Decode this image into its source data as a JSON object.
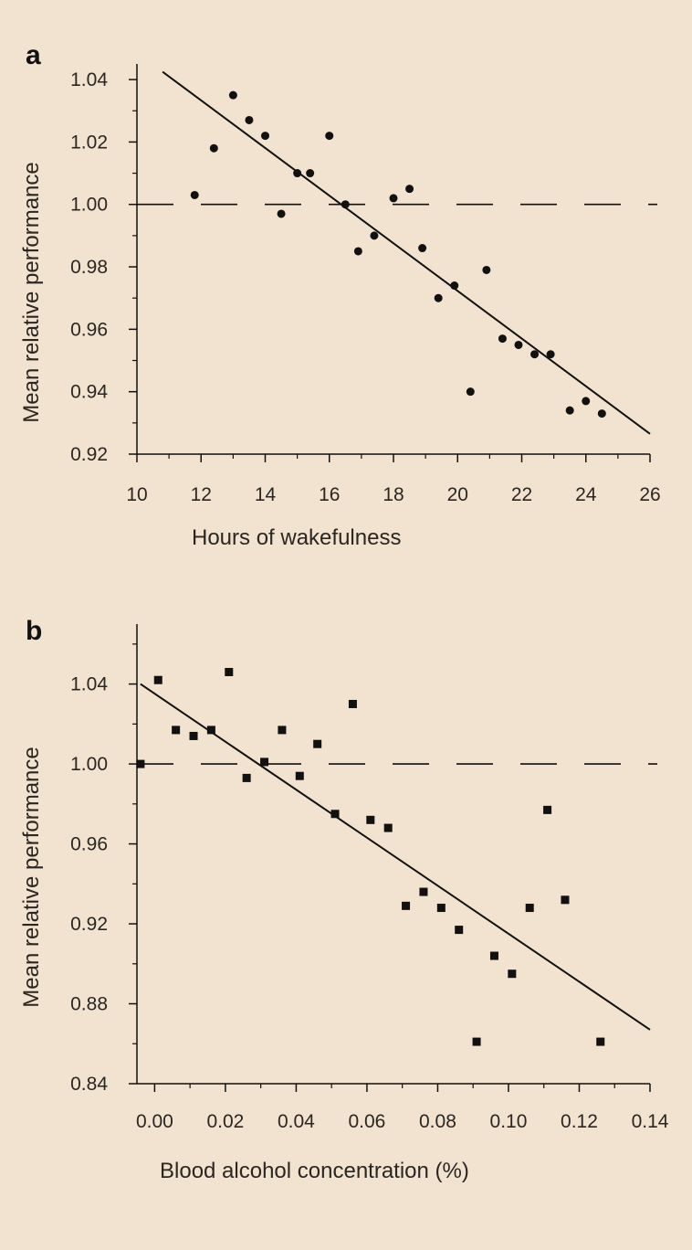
{
  "colors": {
    "background": "#f1e3d0",
    "ink": "#111111",
    "text": "#2a2622"
  },
  "chart_data": [
    {
      "type": "scatter",
      "panel_label": "a",
      "title": "",
      "xlabel": "Hours of wakefulness",
      "ylabel": "Mean relative performance",
      "xlim": [
        10,
        26
      ],
      "ylim": [
        0.92,
        1.045
      ],
      "x_ticks": [
        10,
        12,
        14,
        16,
        18,
        20,
        22,
        24,
        26
      ],
      "x_tick_labels": [
        "10",
        "12",
        "14",
        "16",
        "18",
        "20",
        "22",
        "24",
        "26"
      ],
      "y_ticks": [
        0.92,
        0.94,
        0.96,
        0.98,
        1.0,
        1.02,
        1.04
      ],
      "y_tick_labels": [
        "0.92",
        "0.94",
        "0.96",
        "0.98",
        "1.00",
        "1.02",
        "1.04"
      ],
      "marker": "circle",
      "reference_line": {
        "y": 1.0,
        "style": "dashed"
      },
      "fit_line": {
        "x": [
          10.8,
          26
        ],
        "y": [
          1.0425,
          0.9265
        ]
      },
      "points": [
        {
          "x": 11.8,
          "y": 1.003
        },
        {
          "x": 12.4,
          "y": 1.018
        },
        {
          "x": 13.0,
          "y": 1.035
        },
        {
          "x": 13.5,
          "y": 1.027
        },
        {
          "x": 14.0,
          "y": 1.022
        },
        {
          "x": 14.5,
          "y": 0.997
        },
        {
          "x": 15.0,
          "y": 1.01
        },
        {
          "x": 15.4,
          "y": 1.01
        },
        {
          "x": 16.0,
          "y": 1.022
        },
        {
          "x": 16.5,
          "y": 1.0
        },
        {
          "x": 16.9,
          "y": 0.985
        },
        {
          "x": 17.4,
          "y": 0.99
        },
        {
          "x": 18.0,
          "y": 1.002
        },
        {
          "x": 18.5,
          "y": 1.005
        },
        {
          "x": 18.9,
          "y": 0.986
        },
        {
          "x": 19.4,
          "y": 0.97
        },
        {
          "x": 19.9,
          "y": 0.974
        },
        {
          "x": 20.4,
          "y": 0.94
        },
        {
          "x": 20.9,
          "y": 0.979
        },
        {
          "x": 21.4,
          "y": 0.957
        },
        {
          "x": 21.9,
          "y": 0.955
        },
        {
          "x": 22.4,
          "y": 0.952
        },
        {
          "x": 22.9,
          "y": 0.952
        },
        {
          "x": 23.5,
          "y": 0.934
        },
        {
          "x": 24.0,
          "y": 0.937
        },
        {
          "x": 24.5,
          "y": 0.933
        }
      ]
    },
    {
      "type": "scatter",
      "panel_label": "b",
      "title": "",
      "xlabel": "Blood alcohol concentration (%)",
      "ylabel": "Mean relative performance",
      "xlim": [
        -0.005,
        0.14
      ],
      "ylim": [
        0.84,
        1.07
      ],
      "x_ticks": [
        0.0,
        0.02,
        0.04,
        0.06,
        0.08,
        0.1,
        0.12,
        0.14
      ],
      "x_tick_labels": [
        "0.00",
        "0.02",
        "0.04",
        "0.06",
        "0.08",
        "0.10",
        "0.12",
        "0.14"
      ],
      "y_ticks": [
        0.84,
        0.88,
        0.92,
        0.96,
        1.0,
        1.04
      ],
      "y_tick_labels": [
        "0.84",
        "0.88",
        "0.92",
        "0.96",
        "1.00",
        "1.04"
      ],
      "marker": "square",
      "reference_line": {
        "y": 1.0,
        "style": "dashed"
      },
      "fit_line": {
        "x": [
          -0.004,
          0.14
        ],
        "y": [
          1.04,
          0.867
        ]
      },
      "points": [
        {
          "x": -0.004,
          "y": 1.0
        },
        {
          "x": 0.001,
          "y": 1.042
        },
        {
          "x": 0.006,
          "y": 1.017
        },
        {
          "x": 0.011,
          "y": 1.014
        },
        {
          "x": 0.016,
          "y": 1.017
        },
        {
          "x": 0.021,
          "y": 1.046
        },
        {
          "x": 0.026,
          "y": 0.993
        },
        {
          "x": 0.031,
          "y": 1.001
        },
        {
          "x": 0.036,
          "y": 1.017
        },
        {
          "x": 0.041,
          "y": 0.994
        },
        {
          "x": 0.046,
          "y": 1.01
        },
        {
          "x": 0.051,
          "y": 0.975
        },
        {
          "x": 0.056,
          "y": 1.03
        },
        {
          "x": 0.061,
          "y": 0.972
        },
        {
          "x": 0.066,
          "y": 0.968
        },
        {
          "x": 0.071,
          "y": 0.929
        },
        {
          "x": 0.076,
          "y": 0.936
        },
        {
          "x": 0.081,
          "y": 0.928
        },
        {
          "x": 0.086,
          "y": 0.917
        },
        {
          "x": 0.091,
          "y": 0.861
        },
        {
          "x": 0.096,
          "y": 0.904
        },
        {
          "x": 0.101,
          "y": 0.895
        },
        {
          "x": 0.106,
          "y": 0.928
        },
        {
          "x": 0.111,
          "y": 0.977
        },
        {
          "x": 0.116,
          "y": 0.932
        },
        {
          "x": 0.126,
          "y": 0.861
        }
      ]
    }
  ]
}
